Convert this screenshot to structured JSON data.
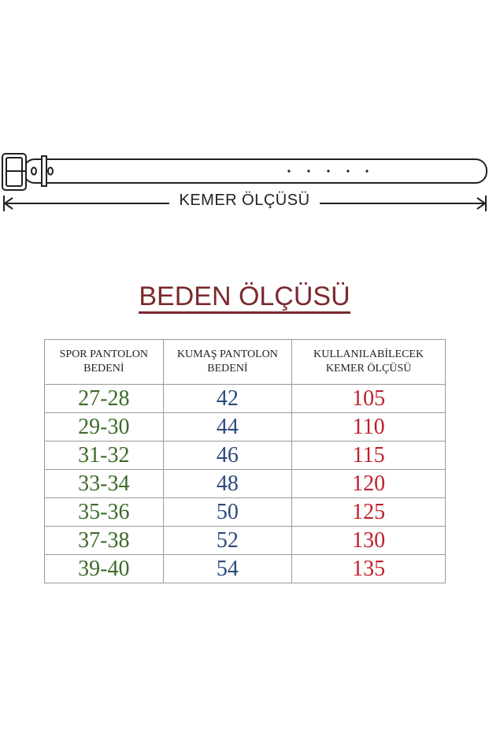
{
  "diagram": {
    "label": "KEMER ÖLÇÜSÜ"
  },
  "title": "BEDEN ÖLÇÜSÜ",
  "colors": {
    "sport": "#3d6b2a",
    "fabric": "#2c4a7c",
    "belt": "#c0202a",
    "title": "#7a2a2e"
  },
  "table": {
    "headers": [
      [
        "SPOR PANTOLON",
        "BEDENİ"
      ],
      [
        "KUMAŞ PANTOLON",
        "BEDENİ"
      ],
      [
        "KULLANILABİLECEK",
        "KEMER ÖLÇÜSÜ"
      ]
    ],
    "rows": [
      [
        "27-28",
        "42",
        "105"
      ],
      [
        "29-30",
        "44",
        "110"
      ],
      [
        "31-32",
        "46",
        "115"
      ],
      [
        "33-34",
        "48",
        "120"
      ],
      [
        "35-36",
        "50",
        "125"
      ],
      [
        "37-38",
        "52",
        "130"
      ],
      [
        "39-40",
        "54",
        "135"
      ]
    ]
  }
}
